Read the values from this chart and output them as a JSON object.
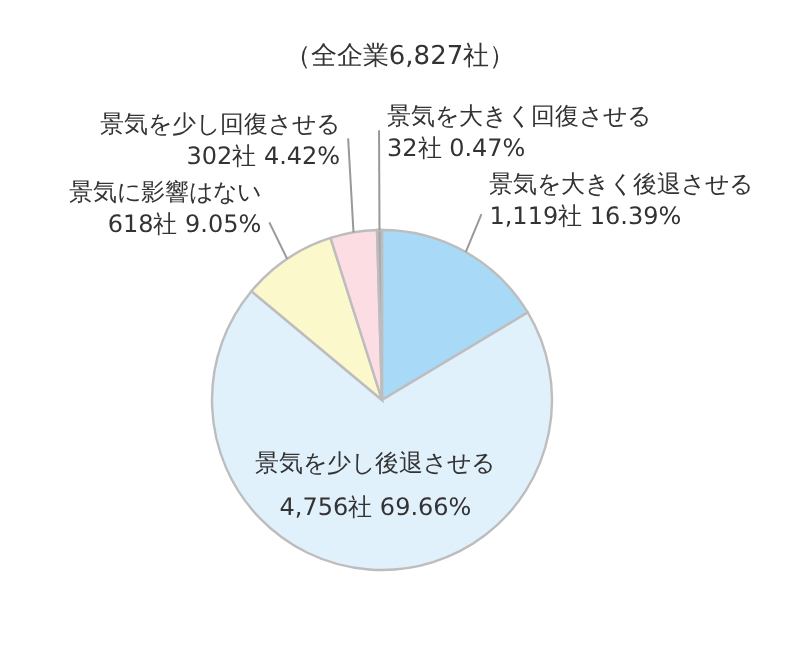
{
  "chart_data": {
    "type": "pie",
    "title": "（全企業6,827社）",
    "categories": [
      "景気を大きく後退させる",
      "景気を少し後退させる",
      "景気に影響はない",
      "景気を少し回復させる",
      "景気を大きく回復させる"
    ],
    "values": [
      1119,
      4756,
      618,
      302,
      32
    ],
    "value_labels": [
      "1,119社 16.39%",
      "4,756社 69.66%",
      "618社 9.05%",
      "302社 4.42%",
      "32社 0.47%"
    ],
    "colors": [
      "#a8daf7",
      "#e1f1fc",
      "#fbf8cc",
      "#fcdde4",
      "#a9a9a9"
    ]
  }
}
